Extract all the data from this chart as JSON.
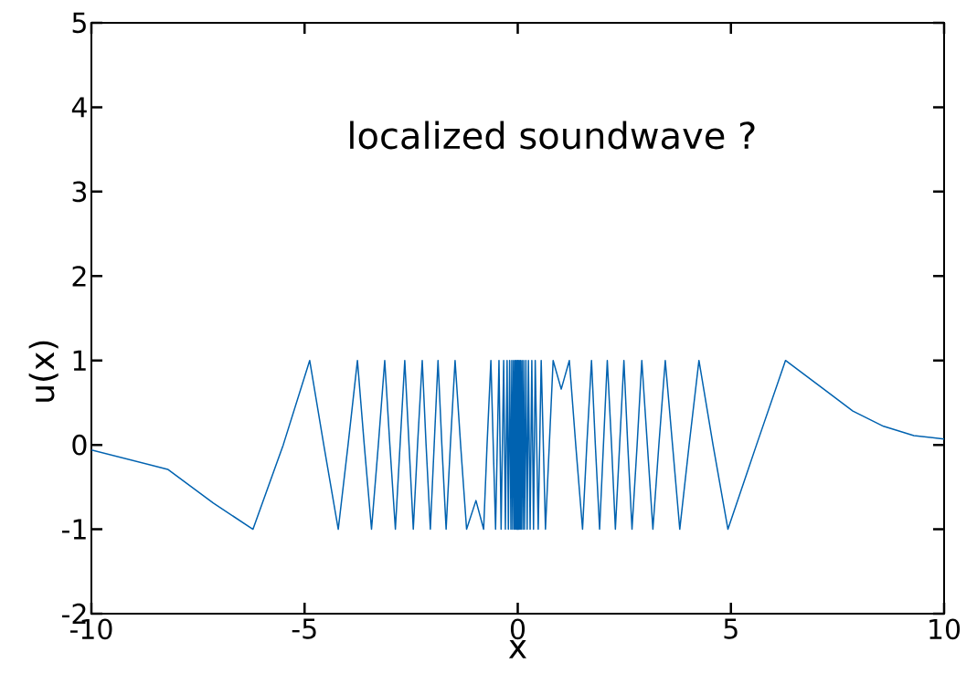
{
  "chart_data": {
    "type": "line",
    "xlabel": "x",
    "ylabel": "u(x)",
    "annotations": [
      "localized soundwave ?"
    ],
    "xlim": [
      -10,
      10
    ],
    "ylim": [
      -2,
      5
    ],
    "xticks": [
      -10,
      -5,
      0,
      5,
      10
    ],
    "yticks": [
      -2,
      -1,
      0,
      1,
      2,
      3,
      4,
      5
    ],
    "grid": false,
    "marker": "none",
    "line_style": "solid",
    "series": [
      {
        "color": "#0062b0",
        "x": [
          -10,
          -8.21,
          -7.14,
          -6.21,
          -5.5,
          -4.88,
          -4.55,
          -4.21,
          -3.98,
          -3.76,
          -3.6,
          -3.43,
          -3.27,
          -3.12,
          -3.0,
          -2.87,
          -2.76,
          -2.65,
          -2.55,
          -2.45,
          -2.35,
          -2.24,
          -2.15,
          -2.05,
          -1.96,
          -1.87,
          -1.78,
          -1.68,
          -1.58,
          -1.47,
          -1.34,
          -1.2,
          -0.98,
          -0.8,
          -0.72,
          -0.63,
          -0.52,
          -0.44,
          -0.39,
          -0.33,
          -0.29,
          -0.25,
          -0.22,
          -0.19,
          -0.16,
          -0.14,
          -0.12,
          -0.1,
          -0.08,
          -0.065,
          -0.05,
          -0.035,
          -0.02,
          -0.01,
          0,
          0.01,
          0.02,
          0.035,
          0.05,
          0.065,
          0.08,
          0.1,
          0.12,
          0.14,
          0.16,
          0.19,
          0.22,
          0.25,
          0.29,
          0.33,
          0.37,
          0.41,
          0.48,
          0.55,
          0.65,
          0.74,
          0.83,
          1.02,
          1.21,
          1.36,
          1.52,
          1.62,
          1.73,
          1.82,
          1.92,
          2.01,
          2.1,
          2.2,
          2.29,
          2.39,
          2.49,
          2.58,
          2.68,
          2.8,
          2.91,
          3.04,
          3.17,
          3.31,
          3.46,
          3.63,
          3.8,
          4.02,
          4.25,
          4.58,
          4.93,
          5.6,
          6.28,
          7.15,
          7.86,
          8.58,
          9.29,
          10
        ],
        "values": [
          -0.06,
          -0.29,
          -0.69,
          -1,
          0,
          1,
          0,
          -1,
          0,
          1,
          0,
          -1,
          0,
          1,
          0,
          -1,
          0,
          1,
          0,
          -1,
          0,
          1,
          0,
          -1,
          0,
          1,
          0,
          -1,
          0,
          1,
          0,
          -1,
          -0.66,
          -1,
          0,
          1,
          -1,
          1,
          -1,
          1,
          -1,
          1,
          -1,
          1,
          -1,
          1,
          -1,
          1,
          -1,
          1,
          -1,
          1,
          -1,
          1,
          -1,
          1,
          -1,
          1,
          -1,
          1,
          -1,
          1,
          -1,
          1,
          -1,
          1,
          -1,
          1,
          -1,
          1,
          -1,
          1,
          -1,
          1,
          -1,
          0,
          1,
          0.66,
          1,
          0,
          -1,
          0,
          1,
          0,
          -1,
          0,
          1,
          0,
          -1,
          0,
          1,
          0,
          -1,
          0,
          1,
          0,
          -1,
          0,
          1,
          0,
          -1,
          0,
          1,
          0,
          -1,
          0,
          1,
          0.67,
          0.4,
          0.22,
          0.11,
          0.07
        ]
      }
    ]
  }
}
